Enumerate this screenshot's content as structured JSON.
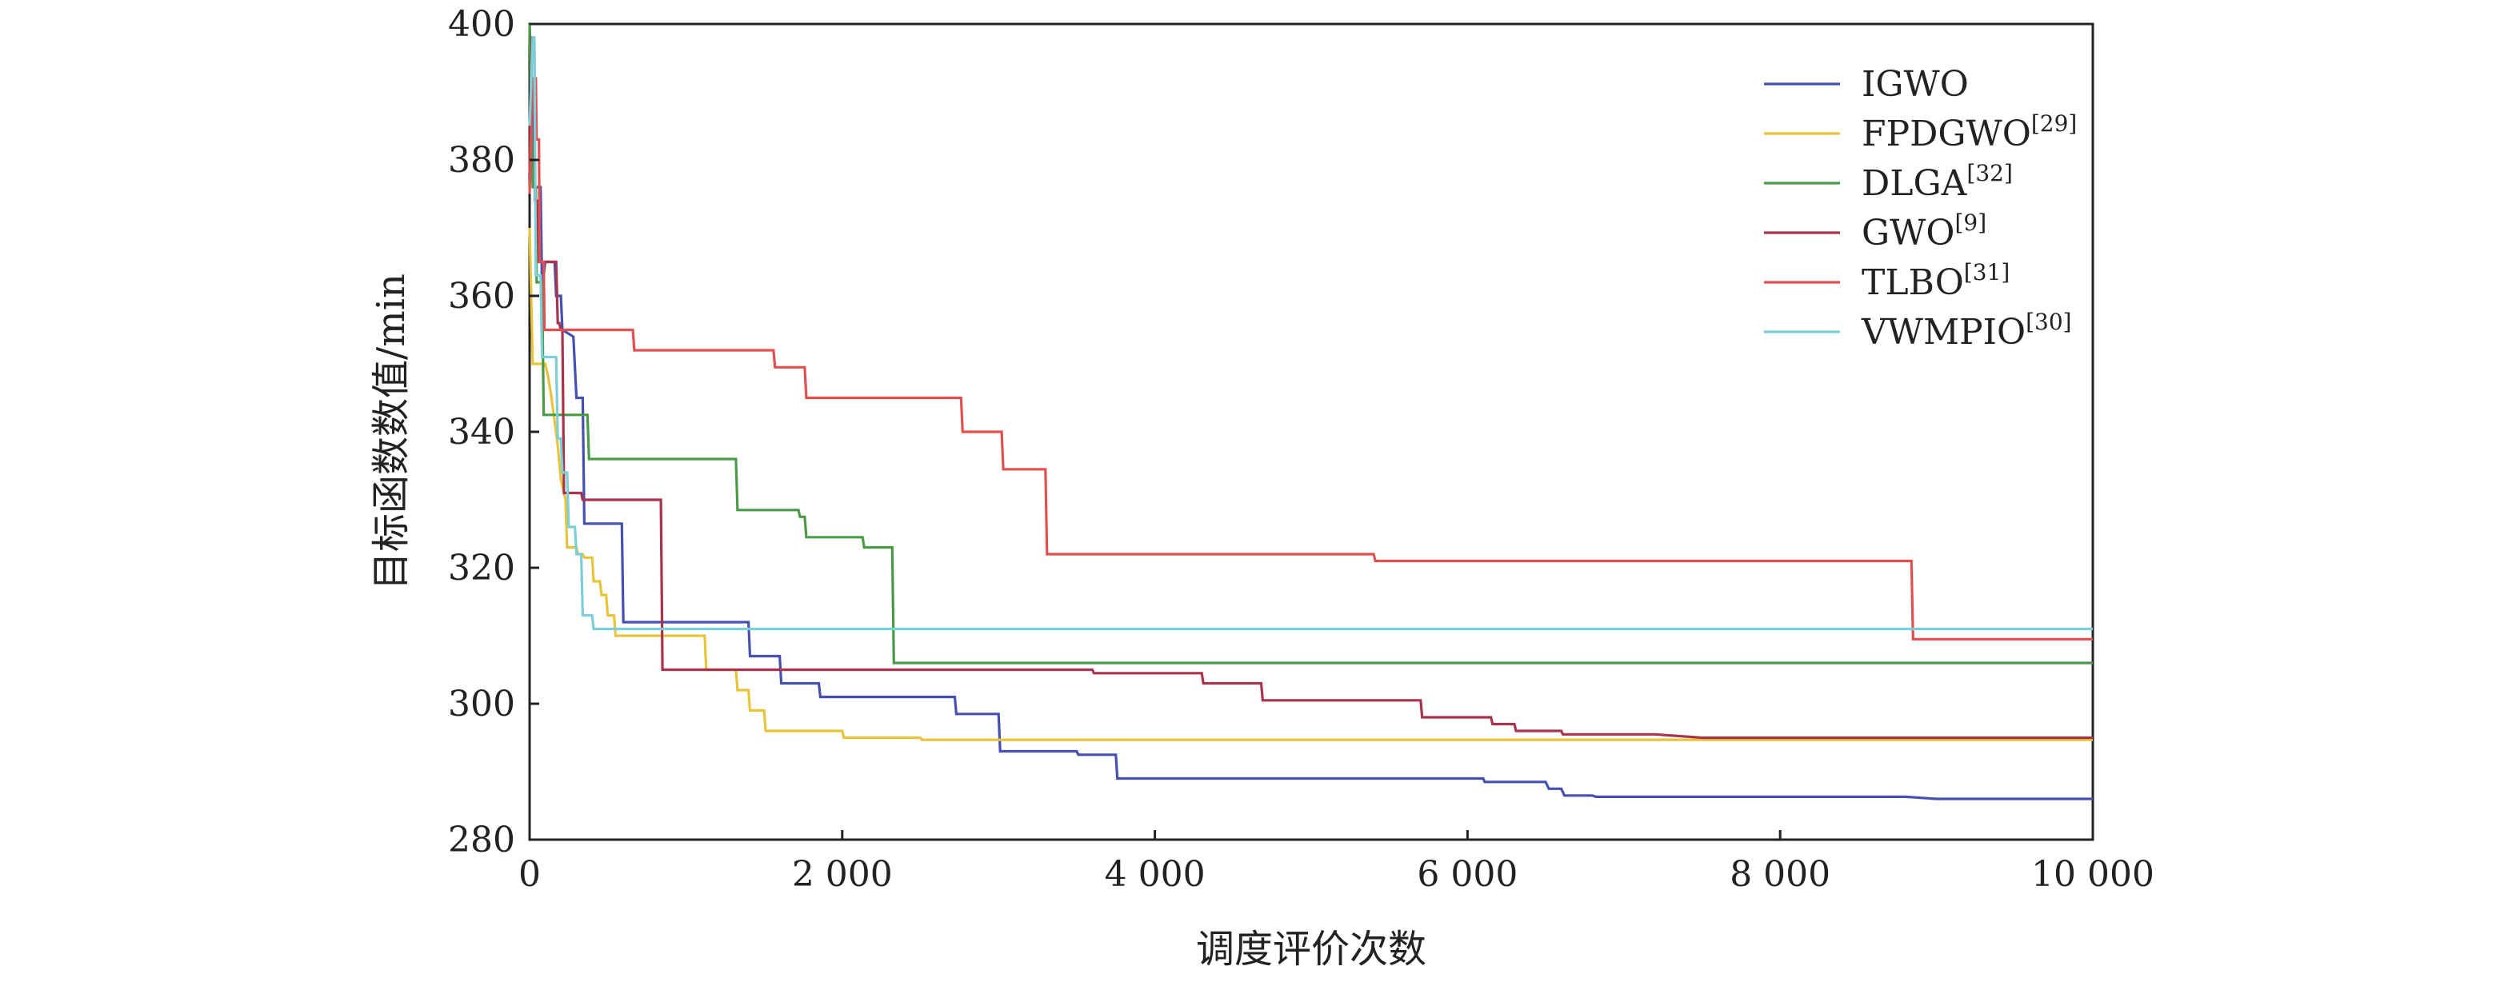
{
  "chart_data": {
    "type": "line",
    "title": "",
    "xlabel": "调度评价次数",
    "ylabel": "目标函数数值/min",
    "xlim": [
      0,
      10000
    ],
    "ylim": [
      280,
      400
    ],
    "x_ticks": [
      0,
      2000,
      4000,
      6000,
      8000,
      10000
    ],
    "x_tick_labels": [
      "0",
      "2 000",
      "4 000",
      "6 000",
      "8 000",
      "10 000"
    ],
    "y_ticks": [
      280,
      300,
      320,
      340,
      360,
      380,
      400
    ],
    "y_tick_labels": [
      "280",
      "300",
      "320",
      "340",
      "360",
      "380",
      "400"
    ],
    "grid": false,
    "legend_position": "top-right",
    "series": [
      {
        "name": "IGWO",
        "ref": "",
        "color": "#4650b0",
        "points": [
          [
            0,
            400
          ],
          [
            10,
            393
          ],
          [
            25,
            382
          ],
          [
            35,
            376
          ],
          [
            70,
            376
          ],
          [
            80,
            361
          ],
          [
            100,
            365
          ],
          [
            160,
            365
          ],
          [
            170,
            360
          ],
          [
            200,
            360
          ],
          [
            210,
            355
          ],
          [
            280,
            354
          ],
          [
            300,
            345
          ],
          [
            340,
            345
          ],
          [
            350,
            326.5
          ],
          [
            590,
            326.5
          ],
          [
            600,
            312
          ],
          [
            1400,
            312
          ],
          [
            1410,
            307
          ],
          [
            1600,
            307
          ],
          [
            1610,
            303
          ],
          [
            1850,
            303
          ],
          [
            1860,
            301
          ],
          [
            2720,
            301
          ],
          [
            2730,
            298.5
          ],
          [
            3000,
            298.5
          ],
          [
            3010,
            293
          ],
          [
            3500,
            293
          ],
          [
            3510,
            292.5
          ],
          [
            3750,
            292.5
          ],
          [
            3760,
            289
          ],
          [
            6100,
            289
          ],
          [
            6110,
            288.5
          ],
          [
            6500,
            288.5
          ],
          [
            6520,
            287.5
          ],
          [
            6600,
            287.5
          ],
          [
            6620,
            286.5
          ],
          [
            6800,
            286.5
          ],
          [
            6820,
            286.3
          ],
          [
            8800,
            286.3
          ],
          [
            9000,
            286
          ],
          [
            10000,
            286
          ]
        ]
      },
      {
        "name": "FPDGWO",
        "ref": "[29]",
        "color": "#e8c43a",
        "points": [
          [
            0,
            370
          ],
          [
            20,
            350
          ],
          [
            100,
            350
          ],
          [
            120,
            348
          ],
          [
            140,
            345
          ],
          [
            180,
            338
          ],
          [
            200,
            333
          ],
          [
            230,
            330
          ],
          [
            240,
            323
          ],
          [
            300,
            323
          ],
          [
            310,
            322
          ],
          [
            340,
            322
          ],
          [
            350,
            321.5
          ],
          [
            400,
            321.5
          ],
          [
            410,
            318
          ],
          [
            450,
            318
          ],
          [
            460,
            316
          ],
          [
            490,
            316
          ],
          [
            500,
            313
          ],
          [
            540,
            313
          ],
          [
            550,
            310
          ],
          [
            1120,
            310
          ],
          [
            1130,
            305
          ],
          [
            1320,
            305
          ],
          [
            1330,
            302
          ],
          [
            1400,
            302
          ],
          [
            1410,
            299
          ],
          [
            1500,
            299
          ],
          [
            1510,
            296
          ],
          [
            2000,
            296
          ],
          [
            2010,
            295
          ],
          [
            2500,
            295
          ],
          [
            2510,
            294.7
          ],
          [
            10000,
            294.7
          ]
        ]
      },
      {
        "name": "DLGA",
        "ref": "[32]",
        "color": "#4a9a48",
        "points": [
          [
            0,
            400
          ],
          [
            20,
            376
          ],
          [
            40,
            376
          ],
          [
            45,
            362
          ],
          [
            80,
            362
          ],
          [
            90,
            342.5
          ],
          [
            370,
            342.5
          ],
          [
            380,
            336
          ],
          [
            1320,
            336
          ],
          [
            1330,
            328.5
          ],
          [
            1720,
            328.5
          ],
          [
            1730,
            327.5
          ],
          [
            1760,
            327.5
          ],
          [
            1770,
            324.5
          ],
          [
            2130,
            324.5
          ],
          [
            2140,
            323
          ],
          [
            2320,
            323
          ],
          [
            2330,
            306
          ],
          [
            10000,
            306
          ]
        ]
      },
      {
        "name": "GWO",
        "ref": "[9]",
        "color": "#a8334a",
        "points": [
          [
            0,
            378
          ],
          [
            15,
            398
          ],
          [
            30,
            398
          ],
          [
            35,
            374
          ],
          [
            50,
            374
          ],
          [
            60,
            365
          ],
          [
            170,
            365
          ],
          [
            180,
            356
          ],
          [
            190,
            356
          ],
          [
            200,
            355
          ],
          [
            210,
            355
          ],
          [
            220,
            331
          ],
          [
            330,
            331
          ],
          [
            340,
            330
          ],
          [
            840,
            330
          ],
          [
            850,
            305
          ],
          [
            3600,
            305
          ],
          [
            3610,
            304.5
          ],
          [
            4300,
            304.5
          ],
          [
            4310,
            303
          ],
          [
            4680,
            303
          ],
          [
            4690,
            300.5
          ],
          [
            5700,
            300.5
          ],
          [
            5710,
            298
          ],
          [
            6150,
            298
          ],
          [
            6160,
            297
          ],
          [
            6300,
            297
          ],
          [
            6310,
            296
          ],
          [
            6600,
            296
          ],
          [
            6610,
            295.5
          ],
          [
            7200,
            295.5
          ],
          [
            7500,
            295
          ],
          [
            10000,
            295
          ]
        ]
      },
      {
        "name": "TLBO",
        "ref": "[31]",
        "color": "#e05050",
        "points": [
          [
            0,
            375
          ],
          [
            20,
            392
          ],
          [
            40,
            392
          ],
          [
            45,
            383
          ],
          [
            60,
            383
          ],
          [
            65,
            365
          ],
          [
            90,
            365
          ],
          [
            95,
            355
          ],
          [
            660,
            355
          ],
          [
            670,
            352
          ],
          [
            1560,
            352
          ],
          [
            1570,
            349.5
          ],
          [
            1760,
            349.5
          ],
          [
            1770,
            345
          ],
          [
            2760,
            345
          ],
          [
            2770,
            340
          ],
          [
            3020,
            340
          ],
          [
            3030,
            334.5
          ],
          [
            3300,
            334.5
          ],
          [
            3310,
            322
          ],
          [
            5400,
            322
          ],
          [
            5410,
            321
          ],
          [
            8840,
            321
          ],
          [
            8850,
            309.5
          ],
          [
            10000,
            309.5
          ]
        ]
      },
      {
        "name": "VWMPIO",
        "ref": "[30]",
        "color": "#7ccfd8",
        "points": [
          [
            0,
            385
          ],
          [
            20,
            398
          ],
          [
            30,
            398
          ],
          [
            40,
            363
          ],
          [
            70,
            363
          ],
          [
            80,
            351
          ],
          [
            170,
            351
          ],
          [
            180,
            339
          ],
          [
            200,
            339
          ],
          [
            210,
            334
          ],
          [
            240,
            334
          ],
          [
            250,
            326
          ],
          [
            290,
            326
          ],
          [
            300,
            322
          ],
          [
            330,
            322
          ],
          [
            340,
            313
          ],
          [
            400,
            313
          ],
          [
            410,
            311
          ],
          [
            10000,
            311
          ]
        ]
      }
    ]
  }
}
